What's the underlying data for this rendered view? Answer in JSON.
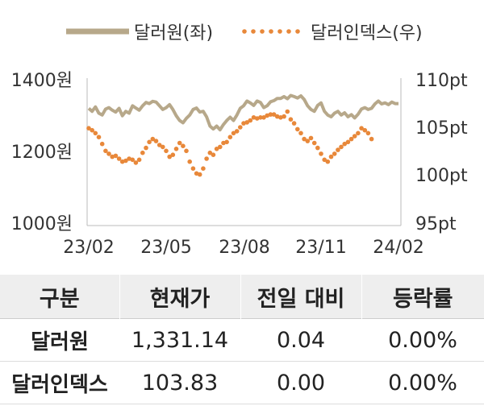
{
  "chart_data": {
    "type": "line",
    "legend": {
      "placement": "top-center"
    },
    "series": [
      {
        "name": "달러원(좌)",
        "axis": "left",
        "style": "solid",
        "color": "#b7a88a"
      },
      {
        "name": "달러인덱스(우)",
        "axis": "right",
        "style": "dotted",
        "color": "#e8883a"
      }
    ],
    "x_ticks": [
      "23/02",
      "23/05",
      "23/08",
      "23/11",
      "24/02"
    ],
    "y_left": {
      "ticks": [
        "1000원",
        "1200원",
        "1400원"
      ],
      "range": [
        1000,
        1400
      ]
    },
    "y_right": {
      "ticks": [
        "95pt",
        "100pt",
        "105pt",
        "110pt"
      ],
      "range": [
        95,
        110
      ]
    },
    "dollar_won": [
      [
        0,
        1318
      ],
      [
        1,
        1310
      ],
      [
        2,
        1322
      ],
      [
        3,
        1305
      ],
      [
        4,
        1300
      ],
      [
        5,
        1316
      ],
      [
        6,
        1320
      ],
      [
        7,
        1313
      ],
      [
        8,
        1308
      ],
      [
        9,
        1318
      ],
      [
        10,
        1298
      ],
      [
        11,
        1310
      ],
      [
        12,
        1305
      ],
      [
        13,
        1325
      ],
      [
        14,
        1319
      ],
      [
        15,
        1313
      ],
      [
        16,
        1325
      ],
      [
        17,
        1334
      ],
      [
        18,
        1331
      ],
      [
        19,
        1337
      ],
      [
        20,
        1335
      ],
      [
        21,
        1325
      ],
      [
        22,
        1315
      ],
      [
        23,
        1320
      ],
      [
        24,
        1328
      ],
      [
        25,
        1315
      ],
      [
        26,
        1298
      ],
      [
        27,
        1285
      ],
      [
        28,
        1279
      ],
      [
        29,
        1291
      ],
      [
        30,
        1300
      ],
      [
        31,
        1315
      ],
      [
        32,
        1319
      ],
      [
        33,
        1308
      ],
      [
        34,
        1310
      ],
      [
        35,
        1295
      ],
      [
        36,
        1270
      ],
      [
        37,
        1262
      ],
      [
        38,
        1270
      ],
      [
        39,
        1260
      ],
      [
        40,
        1274
      ],
      [
        41,
        1285
      ],
      [
        42,
        1294
      ],
      [
        43,
        1285
      ],
      [
        44,
        1300
      ],
      [
        45,
        1318
      ],
      [
        46,
        1325
      ],
      [
        47,
        1338
      ],
      [
        48,
        1333
      ],
      [
        49,
        1326
      ],
      [
        50,
        1338
      ],
      [
        51,
        1334
      ],
      [
        52,
        1320
      ],
      [
        53,
        1325
      ],
      [
        54,
        1336
      ],
      [
        55,
        1339
      ],
      [
        56,
        1345
      ],
      [
        57,
        1345
      ],
      [
        58,
        1350
      ],
      [
        59,
        1344
      ],
      [
        60,
        1353
      ],
      [
        61,
        1350
      ],
      [
        62,
        1346
      ],
      [
        63,
        1352
      ],
      [
        64,
        1342
      ],
      [
        65,
        1325
      ],
      [
        66,
        1315
      ],
      [
        67,
        1310
      ],
      [
        68,
        1326
      ],
      [
        69,
        1333
      ],
      [
        70,
        1310
      ],
      [
        71,
        1300
      ],
      [
        72,
        1295
      ],
      [
        73,
        1305
      ],
      [
        74,
        1310
      ],
      [
        75,
        1300
      ],
      [
        76,
        1306
      ],
      [
        77,
        1295
      ],
      [
        78,
        1301
      ],
      [
        79,
        1292
      ],
      [
        80,
        1302
      ],
      [
        81,
        1316
      ],
      [
        82,
        1320
      ],
      [
        83,
        1315
      ],
      [
        84,
        1318
      ],
      [
        85,
        1330
      ],
      [
        86,
        1338
      ],
      [
        87,
        1330
      ],
      [
        88,
        1333
      ],
      [
        89,
        1328
      ],
      [
        90,
        1335
      ],
      [
        91,
        1331
      ],
      [
        92,
        1331
      ]
    ],
    "dollar_index": [
      [
        0,
        104.9
      ],
      [
        1,
        104.7
      ],
      [
        2,
        104.4
      ],
      [
        3,
        104.0
      ],
      [
        4,
        103.3
      ],
      [
        5,
        102.6
      ],
      [
        6,
        102.3
      ],
      [
        7,
        102.0
      ],
      [
        8,
        102.1
      ],
      [
        9,
        101.8
      ],
      [
        10,
        101.5
      ],
      [
        11,
        101.6
      ],
      [
        12,
        101.8
      ],
      [
        13,
        101.7
      ],
      [
        14,
        101.4
      ],
      [
        15,
        101.7
      ],
      [
        16,
        102.4
      ],
      [
        17,
        102.9
      ],
      [
        18,
        103.5
      ],
      [
        19,
        103.8
      ],
      [
        20,
        103.6
      ],
      [
        21,
        103.2
      ],
      [
        22,
        103.0
      ],
      [
        23,
        102.6
      ],
      [
        24,
        102.0
      ],
      [
        25,
        102.2
      ],
      [
        26,
        102.8
      ],
      [
        27,
        103.4
      ],
      [
        28,
        103.1
      ],
      [
        29,
        102.6
      ],
      [
        30,
        101.5
      ],
      [
        31,
        100.8
      ],
      [
        32,
        100.3
      ],
      [
        33,
        100.2
      ],
      [
        34,
        100.8
      ],
      [
        35,
        101.8
      ],
      [
        36,
        102.4
      ],
      [
        37,
        102.2
      ],
      [
        38,
        102.8
      ],
      [
        39,
        103.0
      ],
      [
        40,
        103.4
      ],
      [
        41,
        103.5
      ],
      [
        42,
        104.0
      ],
      [
        43,
        104.4
      ],
      [
        44,
        104.6
      ],
      [
        45,
        105.0
      ],
      [
        46,
        105.4
      ],
      [
        47,
        105.5
      ],
      [
        48,
        105.7
      ],
      [
        49,
        106.0
      ],
      [
        50,
        105.9
      ],
      [
        51,
        106.0
      ],
      [
        52,
        106.0
      ],
      [
        53,
        106.2
      ],
      [
        54,
        106.3
      ],
      [
        55,
        106.3
      ],
      [
        56,
        106.1
      ],
      [
        57,
        106.0
      ],
      [
        58,
        106.1
      ],
      [
        59,
        106.6
      ],
      [
        60,
        105.8
      ],
      [
        61,
        105.4
      ],
      [
        62,
        104.8
      ],
      [
        63,
        104.4
      ],
      [
        64,
        103.8
      ],
      [
        65,
        103.6
      ],
      [
        66,
        103.9
      ],
      [
        67,
        103.4
      ],
      [
        68,
        102.9
      ],
      [
        69,
        102.3
      ],
      [
        70,
        101.7
      ],
      [
        71,
        101.5
      ],
      [
        72,
        102.0
      ],
      [
        73,
        102.3
      ],
      [
        74,
        102.7
      ],
      [
        75,
        103.0
      ],
      [
        76,
        103.3
      ],
      [
        77,
        103.5
      ],
      [
        78,
        103.8
      ],
      [
        79,
        104.1
      ],
      [
        80,
        104.4
      ],
      [
        81,
        104.9
      ],
      [
        82,
        104.7
      ],
      [
        83,
        104.4
      ],
      [
        84,
        103.8
      ]
    ]
  },
  "table": {
    "headers": [
      "구분",
      "현재가",
      "전일 대비",
      "등락률"
    ],
    "rows": [
      [
        "달러원",
        "1,331.14",
        "0.04",
        "0.00%"
      ],
      [
        "달러인덱스",
        "103.83",
        "0.00",
        "0.00%"
      ]
    ]
  }
}
